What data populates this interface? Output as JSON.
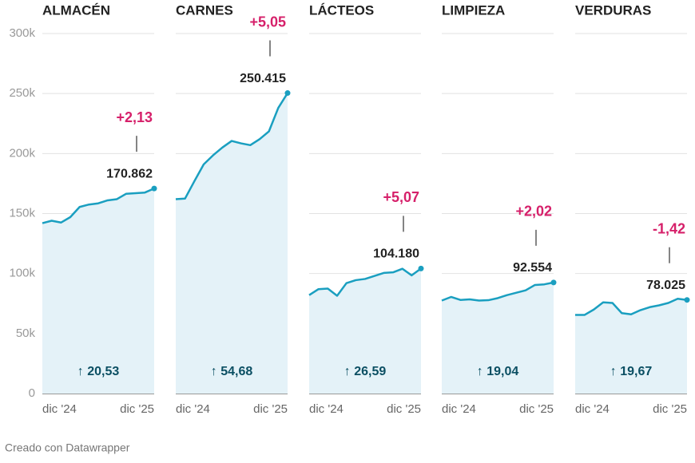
{
  "chart_data": {
    "type": "area",
    "x": [
      "dic '24",
      null,
      null,
      null,
      null,
      null,
      null,
      null,
      null,
      null,
      null,
      null,
      "dic '25"
    ],
    "ylim": [
      0,
      300000
    ],
    "yticks": [
      0,
      {
        "value": 50000,
        "label": "50k"
      },
      {
        "value": 100000,
        "label": "100k"
      },
      {
        "value": 150000,
        "label": "150k"
      },
      {
        "value": 200000,
        "label": "200k"
      },
      {
        "value": 250000,
        "label": "250k"
      },
      {
        "value": 300000,
        "label": "300k"
      }
    ],
    "grid": true,
    "series": [
      {
        "name": "ALMACÉN",
        "color": "#1a9fc0",
        "values": [
          142000,
          144000,
          142500,
          147000,
          155500,
          157500,
          158500,
          161000,
          162000,
          166500,
          167000,
          167500,
          170862
        ],
        "value_labels": [
          null,
          null,
          null,
          null,
          null,
          null,
          null,
          null,
          null,
          null,
          null,
          null,
          "170.862"
        ],
        "change": "+2,13",
        "annual": "↑ 20,53"
      },
      {
        "name": "CARNES",
        "color": "#1a9fc0",
        "values": [
          162000,
          162500,
          177000,
          191000,
          198500,
          205000,
          210500,
          208500,
          207000,
          212000,
          218500,
          238000,
          250415
        ],
        "value_labels": [
          null,
          null,
          null,
          null,
          null,
          null,
          null,
          null,
          null,
          null,
          null,
          null,
          "250.415"
        ],
        "change": "+5,05",
        "annual": "↑ 54,68"
      },
      {
        "name": "LÁCTEOS",
        "color": "#1a9fc0",
        "values": [
          82000,
          87000,
          87500,
          81500,
          92000,
          94500,
          95500,
          98000,
          100500,
          101000,
          104000,
          98500,
          104180
        ],
        "value_labels": [
          null,
          null,
          null,
          null,
          null,
          null,
          null,
          null,
          null,
          null,
          null,
          null,
          "104.180"
        ],
        "change": "+5,07",
        "annual": "↑ 26,59"
      },
      {
        "name": "LIMPIEZA",
        "color": "#1a9fc0",
        "values": [
          77500,
          80500,
          78000,
          78500,
          77500,
          77800,
          79500,
          82000,
          84000,
          86000,
          90500,
          91000,
          92554
        ],
        "value_labels": [
          null,
          null,
          null,
          null,
          null,
          null,
          null,
          null,
          null,
          null,
          null,
          null,
          "92.554"
        ],
        "change": "+2,02",
        "annual": "↑ 19,04"
      },
      {
        "name": "VERDURAS",
        "color": "#1a9fc0",
        "values": [
          65500,
          65500,
          70000,
          76000,
          75500,
          67000,
          66000,
          69500,
          72000,
          73500,
          75500,
          79000,
          78025
        ],
        "value_labels": [
          null,
          null,
          null,
          null,
          null,
          null,
          null,
          null,
          null,
          null,
          null,
          null,
          "78.025"
        ],
        "change": "-1,42",
        "annual": "↑ 19,67"
      }
    ]
  },
  "footer": "Creado con Datawrapper"
}
